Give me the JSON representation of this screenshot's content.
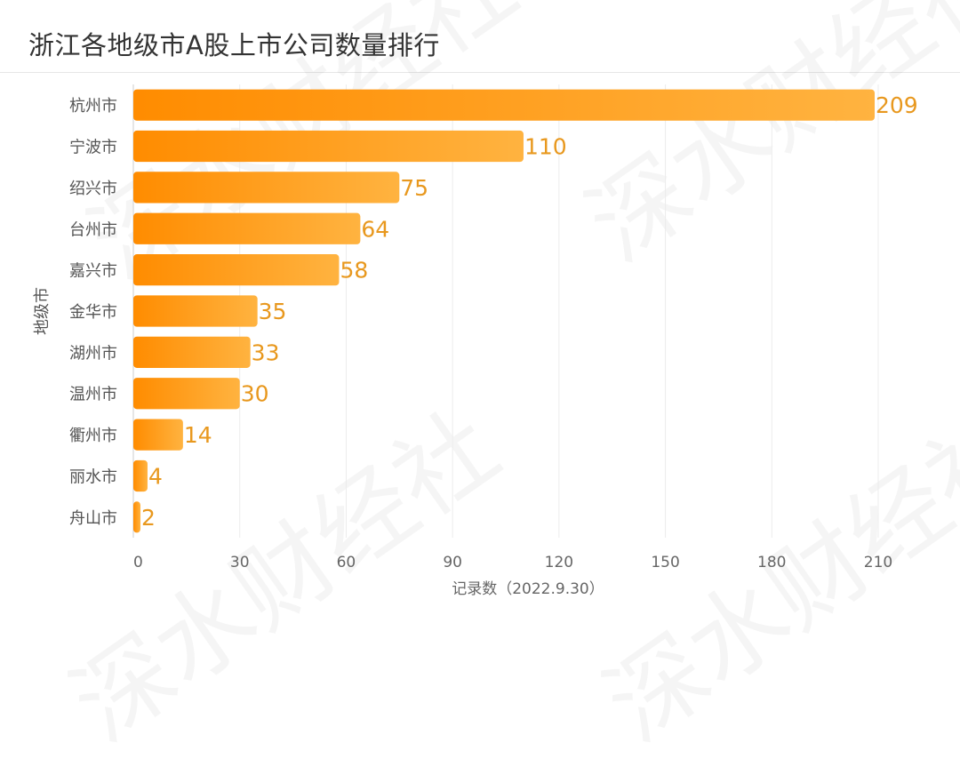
{
  "chart_data": {
    "type": "bar",
    "orientation": "horizontal",
    "title": "浙江各地级市A股上市公司数量排行",
    "ylabel": "地级市",
    "xlabel": "记录数（2022.9.30）",
    "categories": [
      "杭州市",
      "宁波市",
      "绍兴市",
      "台州市",
      "嘉兴市",
      "金华市",
      "湖州市",
      "温州市",
      "衢州市",
      "丽水市",
      "舟山市"
    ],
    "values": [
      209,
      110,
      75,
      64,
      58,
      35,
      33,
      30,
      14,
      4,
      2
    ],
    "xlim": [
      0,
      210
    ],
    "xticks": [
      0,
      30,
      60,
      90,
      120,
      150,
      180,
      210
    ],
    "colors": {
      "bar_start": "#FF8C00",
      "bar_end": "#FFB340",
      "label": "#E8981E"
    }
  },
  "watermark": "深水财经社"
}
